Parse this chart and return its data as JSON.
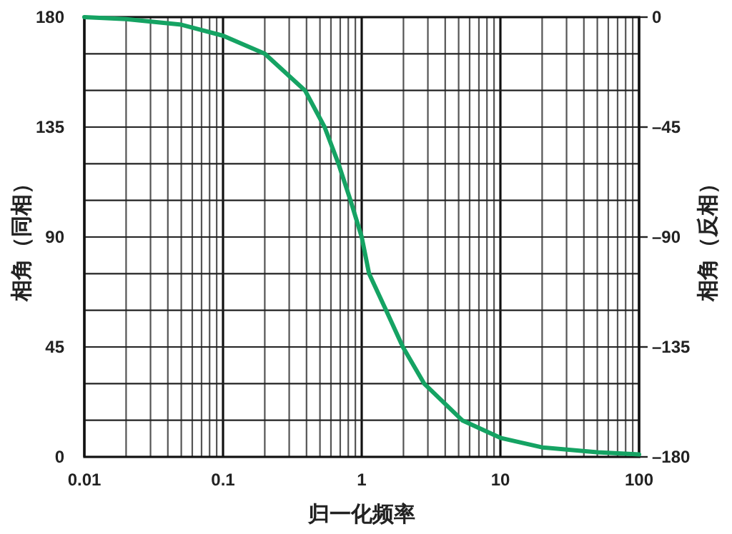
{
  "chart_data": {
    "type": "line",
    "xlabel": "归一化频率",
    "ylabel": "相角（同相）",
    "y2label": "相角（反相）",
    "log": "x",
    "grid": true,
    "line_style": "solid",
    "x": [
      0.01,
      0.02,
      0.05,
      0.1,
      0.2,
      0.39,
      0.54,
      0.68,
      0.83,
      1,
      1.13,
      1.5,
      1.98,
      2.82,
      5.3,
      10,
      20,
      50,
      100
    ],
    "series": [
      {
        "color": "#15a363",
        "values": [
          180,
          179.2,
          176.9,
          172.4,
          165,
          150,
          135,
          120,
          105,
          90,
          75,
          60,
          45,
          30,
          15,
          7.8,
          3.9,
          1.9,
          1
        ]
      }
    ],
    "xlim": [
      0.01,
      100
    ],
    "xticks": [
      0.01,
      {
        "value": 0.02,
        "label": null
      },
      {
        "value": 0.03,
        "label": null
      },
      {
        "value": 0.04,
        "label": null
      },
      {
        "value": 0.05,
        "label": null
      },
      {
        "value": 0.06,
        "label": null
      },
      {
        "value": 0.07,
        "label": null
      },
      {
        "value": 0.08,
        "label": null
      },
      {
        "value": 0.09,
        "label": null
      },
      0.1,
      {
        "value": 0.2,
        "label": null
      },
      {
        "value": 0.3,
        "label": null
      },
      {
        "value": 0.4,
        "label": null
      },
      {
        "value": 0.5,
        "label": null
      },
      {
        "value": 0.6,
        "label": null
      },
      {
        "value": 0.7,
        "label": null
      },
      {
        "value": 0.8,
        "label": null
      },
      {
        "value": 0.9,
        "label": null
      },
      1,
      {
        "value": 2,
        "label": null
      },
      {
        "value": 3,
        "label": null
      },
      {
        "value": 4,
        "label": null
      },
      {
        "value": 5,
        "label": null
      },
      {
        "value": 6,
        "label": null
      },
      {
        "value": 7,
        "label": null
      },
      {
        "value": 8,
        "label": null
      },
      {
        "value": 9,
        "label": null
      },
      10,
      {
        "value": 20,
        "label": null
      },
      {
        "value": 30,
        "label": null
      },
      {
        "value": 40,
        "label": null
      },
      {
        "value": 50,
        "label": null
      },
      {
        "value": 60,
        "label": null
      },
      {
        "value": 70,
        "label": null
      },
      {
        "value": 80,
        "label": null
      },
      {
        "value": 90,
        "label": null
      },
      100
    ],
    "ylim": [
      0,
      180
    ],
    "yticks": [
      0,
      {
        "value": 15,
        "label": null
      },
      {
        "value": 30,
        "label": null
      },
      45,
      {
        "value": 60,
        "label": null
      },
      {
        "value": 75,
        "label": null
      },
      90,
      {
        "value": 105,
        "label": null
      },
      {
        "value": 120,
        "label": null
      },
      135,
      {
        "value": 150,
        "label": null
      },
      {
        "value": 165,
        "label": null
      },
      180
    ],
    "y2lim": [
      -180,
      0
    ],
    "y2ticks": [
      {
        "value": -180,
        "label": "–180"
      },
      {
        "value": -135,
        "label": "–135"
      },
      {
        "value": -90,
        "label": "–90"
      },
      {
        "value": -45,
        "label": "–45"
      },
      0
    ]
  }
}
